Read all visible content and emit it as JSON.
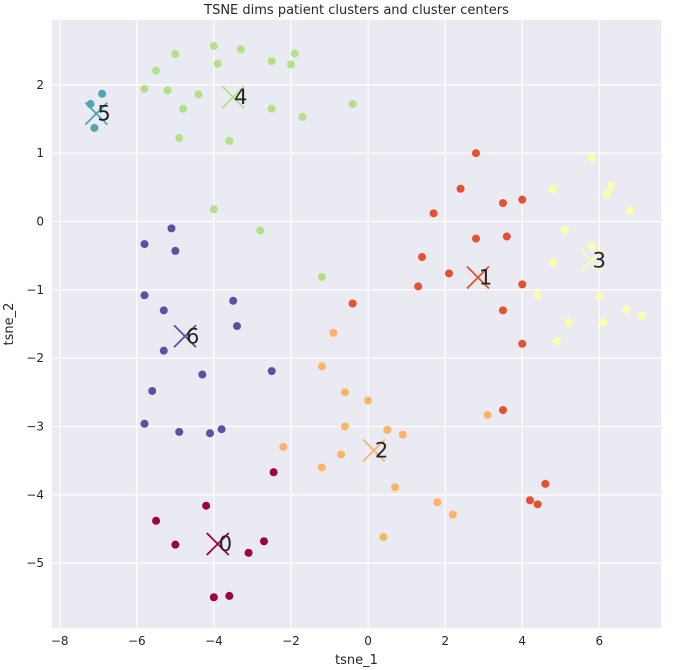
{
  "chart_data": {
    "type": "scatter",
    "title": "TSNE dims patient clusters and cluster centers",
    "xlabel": "tsne_1",
    "ylabel": "tsne_2",
    "xlim": [
      -8.2,
      7.6
    ],
    "ylim": [
      -5.95,
      2.95
    ],
    "xticks": [
      -8,
      -6,
      -4,
      -2,
      0,
      2,
      4,
      6
    ],
    "yticks": [
      2,
      1,
      0,
      -1,
      -2,
      -3,
      -4,
      -5
    ],
    "grid": true,
    "series": [
      {
        "cluster": "0",
        "color": "#9e0142",
        "points": [
          [
            -5.5,
            -4.38
          ],
          [
            -5.0,
            -4.73
          ],
          [
            -4.2,
            -4.16
          ],
          [
            -3.1,
            -4.85
          ],
          [
            -2.7,
            -4.68
          ],
          [
            -4.0,
            -5.5
          ],
          [
            -3.6,
            -5.48
          ],
          [
            -2.45,
            -3.67
          ]
        ],
        "center": [
          -3.9,
          -4.72
        ]
      },
      {
        "cluster": "1",
        "color": "#e5502f",
        "points": [
          [
            2.8,
            1.0
          ],
          [
            2.4,
            0.48
          ],
          [
            3.5,
            0.27
          ],
          [
            4.0,
            0.32
          ],
          [
            1.7,
            0.12
          ],
          [
            2.8,
            -0.25
          ],
          [
            3.6,
            -0.22
          ],
          [
            1.4,
            -0.52
          ],
          [
            2.1,
            -0.76
          ],
          [
            1.3,
            -0.95
          ],
          [
            4.0,
            -0.92
          ],
          [
            3.5,
            -1.3
          ],
          [
            -0.4,
            -1.2
          ],
          [
            4.0,
            -1.79
          ],
          [
            3.5,
            -2.76
          ],
          [
            4.6,
            -3.84
          ],
          [
            4.2,
            -4.08
          ],
          [
            4.4,
            -4.14
          ]
        ],
        "center": [
          2.85,
          -0.82
        ]
      },
      {
        "cluster": "2",
        "color": "#fdb466",
        "points": [
          [
            -0.9,
            -1.63
          ],
          [
            -1.2,
            -2.12
          ],
          [
            -0.6,
            -2.5
          ],
          [
            0.0,
            -2.62
          ],
          [
            -0.6,
            -3.0
          ],
          [
            0.5,
            -3.05
          ],
          [
            0.9,
            -3.12
          ],
          [
            3.1,
            -2.83
          ],
          [
            -2.2,
            -3.3
          ],
          [
            -0.7,
            -3.41
          ],
          [
            -1.2,
            -3.6
          ],
          [
            0.7,
            -3.89
          ],
          [
            1.8,
            -4.11
          ],
          [
            2.2,
            -4.29
          ],
          [
            0.4,
            -4.62
          ]
        ],
        "center": [
          0.15,
          -3.35
        ]
      },
      {
        "cluster": "3",
        "color": "#fefeaa",
        "points": [
          [
            5.8,
            0.93
          ],
          [
            4.8,
            0.48
          ],
          [
            6.3,
            0.52
          ],
          [
            6.2,
            0.4
          ],
          [
            6.8,
            0.16
          ],
          [
            5.1,
            -0.12
          ],
          [
            5.8,
            -0.36
          ],
          [
            4.8,
            -0.6
          ],
          [
            4.4,
            -1.07
          ],
          [
            6.0,
            -1.1
          ],
          [
            6.7,
            -1.29
          ],
          [
            7.1,
            -1.38
          ],
          [
            5.2,
            -1.48
          ],
          [
            6.1,
            -1.48
          ],
          [
            4.9,
            -1.75
          ]
        ],
        "center": [
          5.8,
          -0.57
        ]
      },
      {
        "cluster": "4",
        "color": "#b2e189",
        "points": [
          [
            -4.0,
            2.57
          ],
          [
            -3.3,
            2.52
          ],
          [
            -5.0,
            2.45
          ],
          [
            -1.9,
            2.46
          ],
          [
            -3.9,
            2.31
          ],
          [
            -2.5,
            2.35
          ],
          [
            -2.0,
            2.3
          ],
          [
            -5.5,
            2.21
          ],
          [
            -5.8,
            1.94
          ],
          [
            -5.2,
            1.92
          ],
          [
            -4.4,
            1.86
          ],
          [
            -4.8,
            1.65
          ],
          [
            -2.5,
            1.65
          ],
          [
            -1.7,
            1.53
          ],
          [
            -0.4,
            1.72
          ],
          [
            -4.9,
            1.22
          ],
          [
            -3.6,
            1.18
          ],
          [
            -4.0,
            0.18
          ],
          [
            -2.8,
            -0.13
          ],
          [
            -1.2,
            -0.81
          ]
        ],
        "center": [
          -3.5,
          1.82
        ]
      },
      {
        "cluster": "5",
        "color": "#4fa7b4",
        "points": [
          [
            -7.2,
            1.72
          ],
          [
            -6.9,
            1.87
          ],
          [
            -7.1,
            1.37
          ]
        ],
        "center": [
          -7.05,
          1.58
        ]
      },
      {
        "cluster": "6",
        "color": "#5e4fa2",
        "points": [
          [
            -5.1,
            -0.1
          ],
          [
            -5.8,
            -0.33
          ],
          [
            -5.0,
            -0.43
          ],
          [
            -5.8,
            -1.08
          ],
          [
            -3.5,
            -1.16
          ],
          [
            -5.3,
            -1.3
          ],
          [
            -3.4,
            -1.53
          ],
          [
            -5.3,
            -1.89
          ],
          [
            -4.3,
            -2.24
          ],
          [
            -2.5,
            -2.19
          ],
          [
            -5.6,
            -2.48
          ],
          [
            -5.8,
            -2.96
          ],
          [
            -3.8,
            -3.04
          ],
          [
            -4.9,
            -3.08
          ],
          [
            -4.1,
            -3.1
          ]
        ],
        "center": [
          -4.75,
          -1.68
        ]
      }
    ]
  }
}
